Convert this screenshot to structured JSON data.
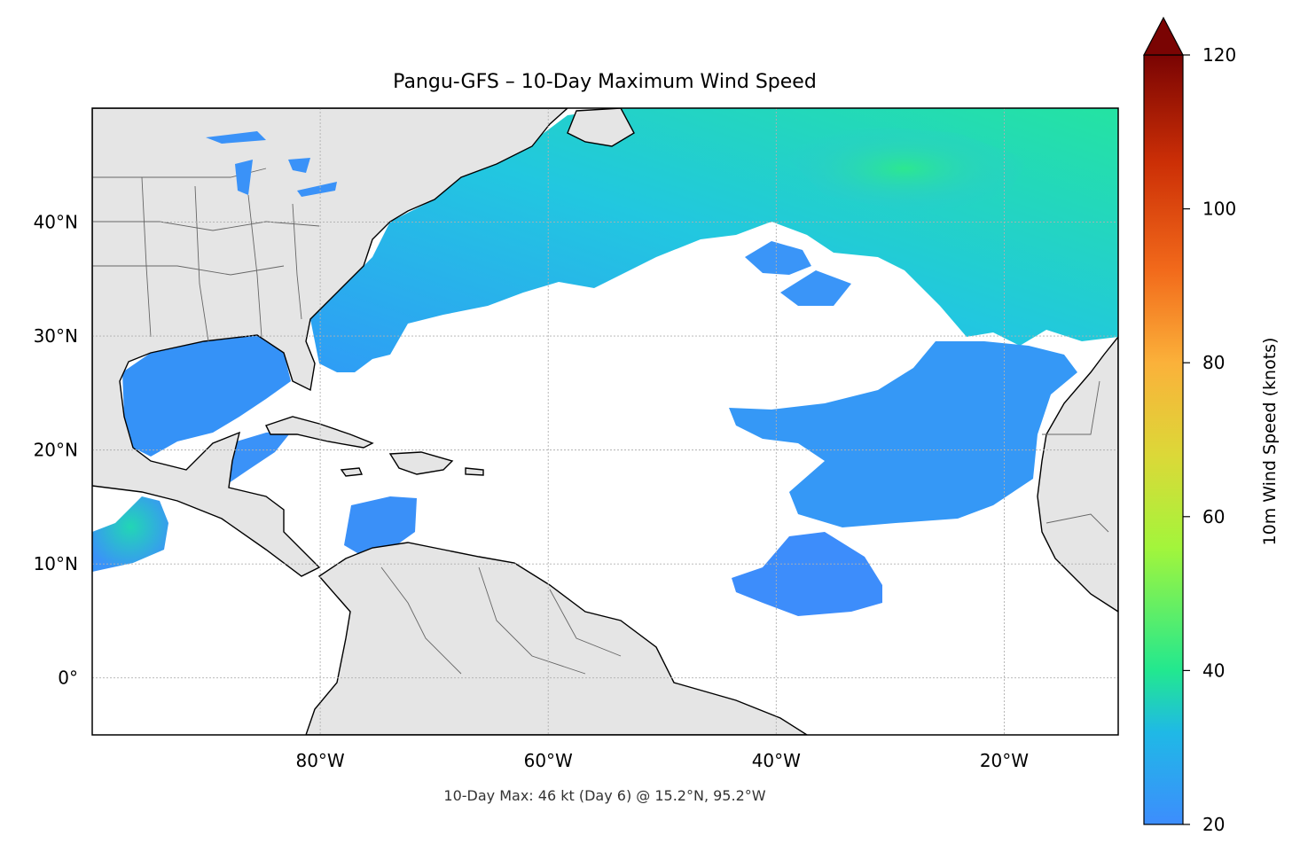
{
  "title": "Pangu-GFS – 10-Day Maximum Wind Speed",
  "footer_text": "10-Day Max: 46 kt (Day 6) @ 15.2°N, 95.2°W",
  "map": {
    "lon_range": [
      -100,
      -10
    ],
    "lat_range": [
      -5,
      50
    ],
    "lon_ticks": [
      {
        "value": -80,
        "label": "80°W"
      },
      {
        "value": -60,
        "label": "60°W"
      },
      {
        "value": -40,
        "label": "40°W"
      },
      {
        "value": -20,
        "label": "20°W"
      }
    ],
    "lat_ticks": [
      {
        "value": 40,
        "label": "40°N"
      },
      {
        "value": 30,
        "label": "30°N"
      },
      {
        "value": 20,
        "label": "20°N"
      },
      {
        "value": 10,
        "label": "10°N"
      },
      {
        "value": 0,
        "label": "0°"
      }
    ],
    "gridlines": true,
    "land_color": "#e5e5e5",
    "ocean_color": "#ffffff"
  },
  "colorbar": {
    "label": "10m Wind Speed (knots)",
    "range": [
      20,
      120
    ],
    "extend": "max",
    "ticks": [
      {
        "value": 20,
        "label": "20"
      },
      {
        "value": 40,
        "label": "40"
      },
      {
        "value": 60,
        "label": "60"
      },
      {
        "value": 80,
        "label": "80"
      },
      {
        "value": 100,
        "label": "100"
      },
      {
        "value": 120,
        "label": "120"
      }
    ],
    "colors": [
      "#3d8dfd",
      "#1fc8d8",
      "#22e88f",
      "#a3f53b",
      "#dcd838",
      "#fbb13a",
      "#f26a1b",
      "#cc2f06",
      "#7a0403"
    ]
  },
  "max_point": {
    "lat": 15.2,
    "lon": -95.2,
    "value_kt": 46,
    "day": 6
  }
}
